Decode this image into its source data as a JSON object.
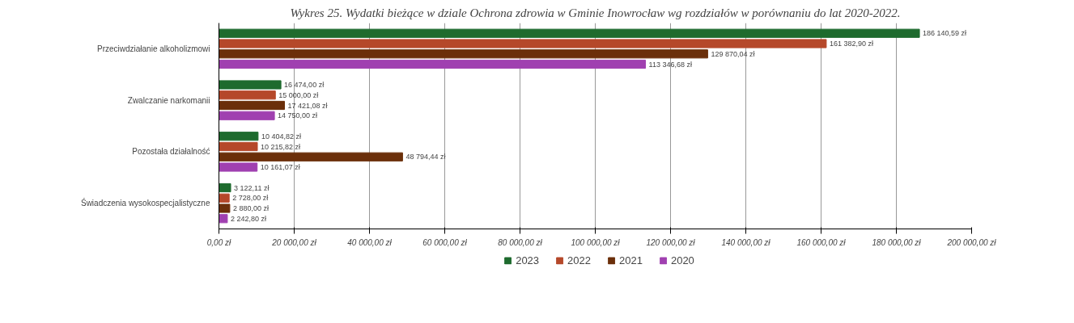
{
  "chart_data": {
    "type": "bar",
    "orientation": "horizontal",
    "title": "Wykres 25. Wydatki bieżące w dziale Ochrona zdrowia w Gminie Inowrocław wg rozdziałów w porównaniu do lat 2020-2022.",
    "categories": [
      "Przeciwdziałanie alkoholizmowi",
      "Zwalczanie narkomanii",
      "Pozostała działalność",
      "Świadczenia wysokospecjalistyczne"
    ],
    "series": [
      {
        "name": "2023",
        "color": "#1e6b2e",
        "values": [
          186140.59,
          16474.0,
          10404.82,
          3122.11
        ],
        "value_labels": [
          "186 140,59 zł",
          "16 474,00 zł",
          "10 404,82 zł",
          "3 122,11 zł"
        ]
      },
      {
        "name": "2022",
        "color": "#b5482a",
        "values": [
          161382.9,
          15000.0,
          10215.82,
          2728.0
        ],
        "value_labels": [
          "161 382,90 zł",
          "15 000,00 zł",
          "10 215,82 zł",
          "2 728,00 zł"
        ]
      },
      {
        "name": "2021",
        "color": "#6b2f0a",
        "values": [
          129870.04,
          17421.08,
          48794.44,
          2880.0
        ],
        "value_labels": [
          "129 870,04 zł",
          "17 421,08 zł",
          "48 794,44 zł",
          "2 880,00 zł"
        ]
      },
      {
        "name": "2020",
        "color": "#a040b0",
        "values": [
          113346.68,
          14750.0,
          10161.07,
          2242.8
        ],
        "value_labels": [
          "113 346,68 zł",
          "14 750,00 zł",
          "10 161,07 zł",
          "2 242,80 zł"
        ]
      }
    ],
    "xlim": [
      0,
      200000
    ],
    "xticks": [
      {
        "value": 0,
        "label": "0,00 zł"
      },
      {
        "value": 20000,
        "label": "20 000,00 zł"
      },
      {
        "value": 40000,
        "label": "40 000,00 zł"
      },
      {
        "value": 60000,
        "label": "60 000,00 zł"
      },
      {
        "value": 80000,
        "label": "80 000,00 zł"
      },
      {
        "value": 100000,
        "label": "100 000,00 zł"
      },
      {
        "value": 120000,
        "label": "120 000,00 zł"
      },
      {
        "value": 140000,
        "label": "140 000,00 zł"
      },
      {
        "value": 160000,
        "label": "160 000,00 zł"
      },
      {
        "value": 180000,
        "label": "180 000,00 zł"
      },
      {
        "value": 200000,
        "label": "200 000,00 zł"
      }
    ],
    "grid": "x",
    "legend": "bottom"
  }
}
